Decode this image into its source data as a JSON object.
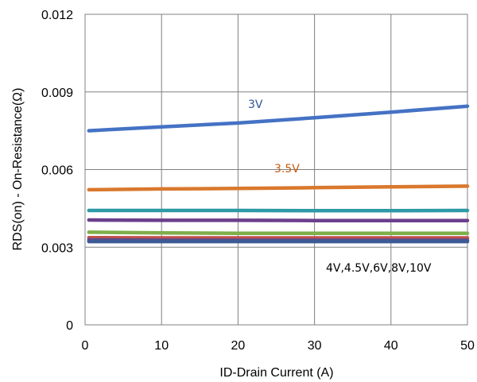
{
  "chart_data": {
    "type": "line",
    "xlabel": "ID-Drain Current (A)",
    "ylabel": "RDS(on) - On-Resistance(Ω)",
    "xlim": [
      0,
      50
    ],
    "ylim": [
      0,
      0.012
    ],
    "x_ticks": [
      "0",
      "10",
      "20",
      "30",
      "40",
      "50"
    ],
    "y_ticks": [
      "0",
      "0.003",
      "0.006",
      "0.009",
      "0.012"
    ],
    "grid": true,
    "annotations": {
      "label_3v": "3V",
      "label_35v": "3.5V",
      "label_rest": "4V,4.5V,6V,8V,10V"
    },
    "series": [
      {
        "name": "3V",
        "color": "#4472C4",
        "x": [
          0.5,
          10,
          20,
          30,
          40,
          50
        ],
        "values": [
          0.0075,
          0.00765,
          0.0078,
          0.008,
          0.00822,
          0.00845
        ]
      },
      {
        "name": "3.5V",
        "color": "#D9782D",
        "x": [
          0.5,
          10,
          20,
          30,
          40,
          50
        ],
        "values": [
          0.00522,
          0.00525,
          0.00527,
          0.0053,
          0.00533,
          0.00536
        ]
      },
      {
        "name": "",
        "color": "#2E9AA6",
        "x": [
          0.5,
          10,
          20,
          30,
          40,
          50
        ],
        "values": [
          0.00442,
          0.00442,
          0.00442,
          0.00441,
          0.00441,
          0.00442
        ]
      },
      {
        "name": "",
        "color": "#6B3F8C",
        "x": [
          0.5,
          10,
          20,
          30,
          40,
          50
        ],
        "values": [
          0.00405,
          0.00404,
          0.00404,
          0.00403,
          0.00403,
          0.00403
        ]
      },
      {
        "name": "",
        "color": "#7FAE4A",
        "x": [
          0.5,
          10,
          20,
          30,
          40,
          50
        ],
        "values": [
          0.00358,
          0.00355,
          0.00354,
          0.00354,
          0.00354,
          0.00354
        ]
      },
      {
        "name": "",
        "color": "#C0504D",
        "x": [
          0.5,
          10,
          20,
          30,
          40,
          50
        ],
        "values": [
          0.00337,
          0.00336,
          0.00336,
          0.00336,
          0.00336,
          0.00336
        ]
      },
      {
        "name": "",
        "color": "#5B4A8B",
        "x": [
          0.5,
          10,
          20,
          30,
          40,
          50
        ],
        "values": [
          0.00328,
          0.00327,
          0.00327,
          0.00327,
          0.00327,
          0.00327
        ]
      },
      {
        "name": "",
        "color": "#3C5A96",
        "x": [
          0.5,
          10,
          20,
          30,
          40,
          50
        ],
        "values": [
          0.00322,
          0.00322,
          0.00322,
          0.00322,
          0.00322,
          0.00322
        ]
      }
    ]
  }
}
